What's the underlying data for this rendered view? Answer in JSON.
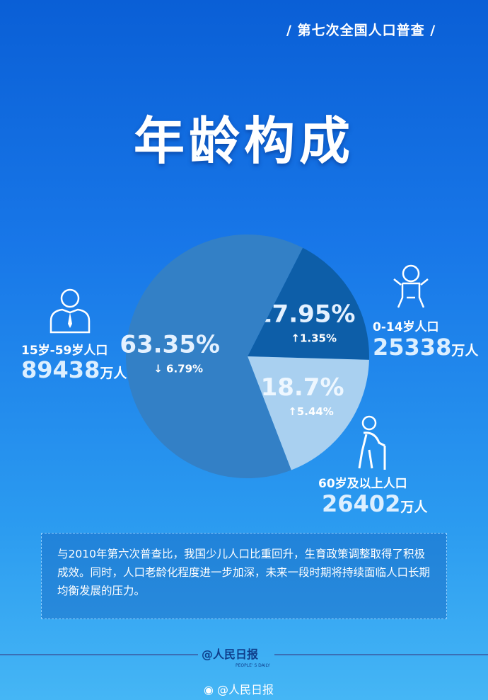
{
  "header": {
    "tag": "第七次全国人口普查",
    "title": "年龄构成"
  },
  "chart_data": {
    "type": "pie",
    "slices": [
      {
        "label": "0-14岁人口",
        "value": 17.95,
        "display": "17.95%",
        "change": "↑1.35%",
        "population": "25338",
        "unit": "万人",
        "color": "#0d5ea8"
      },
      {
        "label": "60岁及以上人口",
        "value": 18.7,
        "display": "18.7%",
        "change": "↑5.44%",
        "population": "26402",
        "unit": "万人",
        "color": "#a9d0f0"
      },
      {
        "label": "15岁-59岁人口",
        "value": 63.35,
        "display": "63.35%",
        "change": "↓ 6.79%",
        "population": "89438",
        "unit": "万人",
        "color": "#3380c6"
      }
    ]
  },
  "note": "与2010年第六次普查比，我国少儿人口比重回升，生育政策调整取得了积极成效。同时，人口老龄化程度进一步加深，未来一段时期将持续面临人口长期均衡发展的压力。",
  "footer": {
    "logo": "人民日报",
    "logo_en": "PEOPLE' S DAILY",
    "weibo": "@人民日报"
  }
}
